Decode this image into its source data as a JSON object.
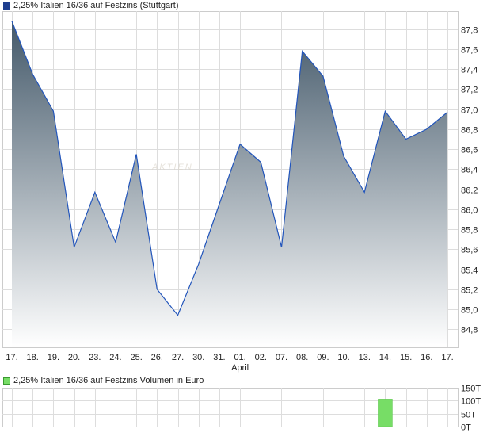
{
  "colors": {
    "price_line": "#2255bb",
    "price_fill_top": "#44596a",
    "price_fill_bottom": "#ffffff",
    "price_legend_swatch": "#1f3f8f",
    "volume_bar": "#77dd66",
    "volume_legend_swatch": "#77dd66",
    "grid": "#dddddd",
    "frame": "#cccccc"
  },
  "chart_data": [
    {
      "type": "area",
      "title": "2,25% Italien 16/36 auf Festzins (Stuttgart)",
      "x_tick_labels": [
        "17.",
        "18.",
        "19.",
        "20.",
        "23.",
        "24.",
        "25.",
        "26.",
        "27.",
        "30.",
        "31.",
        "01.",
        "02.",
        "07.",
        "08.",
        "09.",
        "10.",
        "13.",
        "14.",
        "15.",
        "16.",
        "17."
      ],
      "month_label": "April",
      "x": [
        "17.",
        "18.",
        "19.",
        "20.",
        "23.",
        "24.",
        "25.",
        "26.",
        "27.",
        "30.",
        "31.",
        "01.",
        "02.",
        "07.",
        "08.",
        "09.",
        "10.",
        "13.",
        "14.",
        "15.",
        "16.",
        "17."
      ],
      "values": [
        87.88,
        87.35,
        86.98,
        85.62,
        86.17,
        85.67,
        86.55,
        85.2,
        84.94,
        85.45,
        86.05,
        86.65,
        86.47,
        85.62,
        87.58,
        87.33,
        86.53,
        86.17,
        86.98,
        86.7,
        86.8,
        86.97
      ],
      "ylim": [
        84.62,
        87.98
      ],
      "y_ticks": [
        84.8,
        85.0,
        85.2,
        85.4,
        85.6,
        85.8,
        86.0,
        86.2,
        86.4,
        86.6,
        86.8,
        87.0,
        87.2,
        87.4,
        87.6,
        87.8
      ],
      "y_tick_labels": [
        "84,8",
        "85,0",
        "85,2",
        "85,4",
        "85,6",
        "85,8",
        "86,0",
        "86,2",
        "86,4",
        "86,6",
        "86,8",
        "87,0",
        "87,2",
        "87,4",
        "87,6",
        "87,8"
      ],
      "grid": true,
      "y_axis_side": "right"
    },
    {
      "type": "bar",
      "title": "2,25% Italien 16/36 auf Festzins Volumen in Euro",
      "bar_index": 18,
      "bar_value": 106,
      "ylim": [
        0,
        150
      ],
      "y_ticks": [
        0,
        50,
        100,
        150
      ],
      "y_tick_labels": [
        "0T",
        "50T",
        "100T",
        "150T"
      ],
      "grid": true,
      "y_axis_side": "right"
    }
  ],
  "watermark": "AKTIEN"
}
